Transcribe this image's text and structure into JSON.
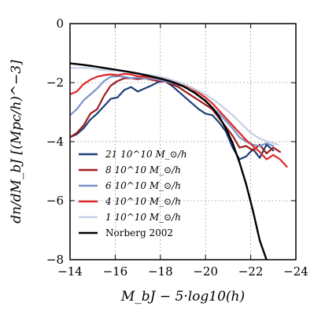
{
  "chart_data": {
    "type": "line",
    "xlabel": "M_bJ − 5·log10(h)",
    "ylabel": "dn/dM_bJ [(Mpc/h)^−3]",
    "xlim": [
      -14,
      -24
    ],
    "ylim": [
      -8,
      0
    ],
    "x_ticks": [
      -14,
      -16,
      -18,
      -20,
      -22,
      -24
    ],
    "y_ticks": [
      -8,
      -6,
      -4,
      -2,
      0
    ],
    "x_tick_labels": [
      "−14",
      "−16",
      "−18",
      "−20",
      "−22",
      "−24"
    ],
    "y_tick_labels": [
      "−8",
      "−6",
      "−4",
      "−2",
      "0"
    ],
    "grid": true,
    "legend_position": "lower-left",
    "series": [
      {
        "name": "21 10^10 M_⊙/h",
        "color": "#1c3f7a",
        "x": [
          -14.0,
          -14.3,
          -14.6,
          -14.9,
          -15.2,
          -15.5,
          -15.8,
          -16.1,
          -16.4,
          -16.7,
          -17.0,
          -17.3,
          -17.6,
          -17.9,
          -18.2,
          -18.5,
          -18.8,
          -19.1,
          -19.4,
          -19.7,
          -20.0,
          -20.3,
          -20.6,
          -20.9,
          -21.2,
          -21.5,
          -21.8,
          -22.1,
          -22.4,
          -22.7,
          -23.0
        ],
        "y": [
          -3.85,
          -3.75,
          -3.55,
          -3.25,
          -3.05,
          -2.8,
          -2.55,
          -2.5,
          -2.25,
          -2.15,
          -2.3,
          -2.2,
          -2.1,
          -1.98,
          -1.95,
          -2.1,
          -2.3,
          -2.5,
          -2.7,
          -2.9,
          -3.05,
          -3.1,
          -3.35,
          -3.65,
          -4.2,
          -4.6,
          -4.5,
          -4.25,
          -4.55,
          -4.1,
          -4.3
        ]
      },
      {
        "name": "8 10^10 M_⊙/h",
        "color": "#a01c1c",
        "x": [
          -14.0,
          -14.3,
          -14.6,
          -14.9,
          -15.2,
          -15.5,
          -15.8,
          -16.1,
          -16.4,
          -16.7,
          -17.0,
          -17.3,
          -17.6,
          -17.9,
          -18.2,
          -18.5,
          -18.8,
          -19.1,
          -19.4,
          -19.7,
          -20.0,
          -20.3,
          -20.6,
          -20.9,
          -21.2,
          -21.5,
          -21.8,
          -22.1,
          -22.4,
          -22.7,
          -23.0,
          -23.3
        ],
        "y": [
          -3.85,
          -3.7,
          -3.45,
          -3.05,
          -2.9,
          -2.45,
          -2.1,
          -1.95,
          -1.85,
          -1.85,
          -1.88,
          -1.85,
          -1.9,
          -1.95,
          -1.95,
          -2.05,
          -2.15,
          -2.3,
          -2.45,
          -2.6,
          -2.75,
          -2.9,
          -3.2,
          -3.5,
          -3.8,
          -4.2,
          -4.15,
          -4.3,
          -4.1,
          -4.4,
          -4.2,
          -4.35
        ]
      },
      {
        "name": "6 10^10 M_⊙/h",
        "color": "#7b96c8",
        "x": [
          -14.0,
          -14.3,
          -14.6,
          -14.9,
          -15.2,
          -15.5,
          -15.8,
          -16.1,
          -16.4,
          -16.7,
          -17.0,
          -17.3,
          -17.6,
          -17.9,
          -18.2,
          -18.5,
          -18.8,
          -19.1,
          -19.4,
          -19.7,
          -20.0,
          -20.3,
          -20.6,
          -20.9,
          -21.2,
          -21.5,
          -21.8,
          -22.1,
          -22.4,
          -22.7,
          -23.0
        ],
        "y": [
          -3.1,
          -2.9,
          -2.6,
          -2.4,
          -2.2,
          -1.95,
          -1.8,
          -1.78,
          -1.8,
          -1.85,
          -1.83,
          -1.85,
          -1.87,
          -1.9,
          -1.95,
          -2.0,
          -2.08,
          -2.15,
          -2.3,
          -2.45,
          -2.6,
          -2.85,
          -3.05,
          -3.3,
          -3.55,
          -3.85,
          -4.0,
          -4.1,
          -4.15,
          -4.05,
          -4.15
        ]
      },
      {
        "name": "4 10^10 M_⊙/h",
        "color": "#e02828",
        "x": [
          -14.0,
          -14.3,
          -14.6,
          -14.9,
          -15.2,
          -15.5,
          -15.8,
          -16.1,
          -16.4,
          -16.7,
          -17.0,
          -17.3,
          -17.6,
          -17.9,
          -18.2,
          -18.5,
          -18.8,
          -19.1,
          -19.4,
          -19.7,
          -20.0,
          -20.3,
          -20.6,
          -20.9,
          -21.2,
          -21.5,
          -21.8,
          -22.1,
          -22.4,
          -22.7,
          -23.0,
          -23.3,
          -23.6
        ],
        "y": [
          -2.4,
          -2.3,
          -2.05,
          -1.9,
          -1.8,
          -1.75,
          -1.72,
          -1.75,
          -1.7,
          -1.72,
          -1.78,
          -1.8,
          -1.82,
          -1.85,
          -1.9,
          -1.95,
          -2.0,
          -2.1,
          -2.2,
          -2.35,
          -2.5,
          -2.7,
          -2.95,
          -3.2,
          -3.45,
          -3.7,
          -3.95,
          -4.15,
          -4.35,
          -4.6,
          -4.45,
          -4.6,
          -4.85
        ]
      },
      {
        "name": "1 10^10 M_⊙/h",
        "color": "#c6d1e6",
        "x": [
          -14.0,
          -14.4,
          -14.8,
          -15.2,
          -15.6,
          -16.0,
          -16.4,
          -16.8,
          -17.2,
          -17.6,
          -18.0,
          -18.4,
          -18.8,
          -19.2,
          -19.6,
          -20.0,
          -20.4,
          -20.8,
          -21.2,
          -21.6,
          -22.0,
          -22.4,
          -22.8,
          -23.2
        ],
        "y": [
          -1.5,
          -1.5,
          -1.5,
          -1.55,
          -1.58,
          -1.6,
          -1.62,
          -1.65,
          -1.7,
          -1.75,
          -1.8,
          -1.88,
          -1.98,
          -2.1,
          -2.25,
          -2.4,
          -2.6,
          -2.85,
          -3.1,
          -3.4,
          -3.7,
          -3.9,
          -4.0,
          -4.1
        ]
      },
      {
        "name": "Norberg 2002",
        "color": "#000000",
        "x": [
          -14.0,
          -14.5,
          -15.0,
          -15.5,
          -16.0,
          -16.5,
          -17.0,
          -17.5,
          -18.0,
          -18.5,
          -19.0,
          -19.5,
          -20.0,
          -20.3,
          -20.6,
          -20.9,
          -21.2,
          -21.5,
          -21.8,
          -22.1,
          -22.4,
          -22.7
        ],
        "y": [
          -1.35,
          -1.39,
          -1.44,
          -1.5,
          -1.56,
          -1.62,
          -1.69,
          -1.77,
          -1.86,
          -1.97,
          -2.12,
          -2.33,
          -2.62,
          -2.85,
          -3.15,
          -3.55,
          -4.05,
          -4.7,
          -5.45,
          -6.35,
          -7.35,
          -8.0
        ]
      }
    ]
  }
}
